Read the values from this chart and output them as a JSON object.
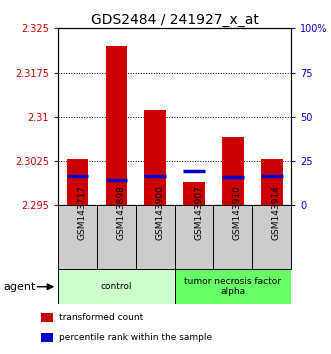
{
  "title": "GDS2484 / 241927_x_at",
  "samples": [
    "GSM143717",
    "GSM143898",
    "GSM143900",
    "GSM143907",
    "GSM143910",
    "GSM143914"
  ],
  "red_values": [
    2.3028,
    2.322,
    2.3112,
    2.299,
    2.3065,
    2.3028
  ],
  "blue_values": [
    2.3,
    2.2993,
    2.3,
    2.3008,
    2.2998,
    2.3
  ],
  "ylim_left": [
    2.295,
    2.325
  ],
  "yticks_left": [
    2.295,
    2.3025,
    2.31,
    2.3175,
    2.325
  ],
  "ytick_labels_left": [
    "2.295",
    "2.3025",
    "2.31",
    "2.3175",
    "2.325"
  ],
  "ylim_right": [
    0,
    100
  ],
  "yticks_right": [
    0,
    25,
    50,
    75,
    100
  ],
  "ytick_labels_right": [
    "0",
    "25",
    "50",
    "75",
    "100%"
  ],
  "groups": [
    {
      "label": "control",
      "indices": [
        0,
        1,
        2
      ],
      "color": "#b3ffb3"
    },
    {
      "label": "tumor necrosis factor\nalpha",
      "indices": [
        3,
        4,
        5
      ],
      "color": "#66ff66"
    }
  ],
  "agent_label": "agent",
  "legend": [
    {
      "color": "#cc0000",
      "label": "transformed count"
    },
    {
      "color": "#0000cc",
      "label": "percentile rank within the sample"
    }
  ],
  "bar_width": 0.55,
  "red_color": "#cc0000",
  "blue_color": "#0000cc",
  "title_fontsize": 10,
  "tick_fontsize": 7,
  "base_value": 2.295,
  "gray_box_color": "#cccccc",
  "gray_box_edge": "#000000",
  "group_light_green": "#ccffcc",
  "group_green": "#66ff66"
}
